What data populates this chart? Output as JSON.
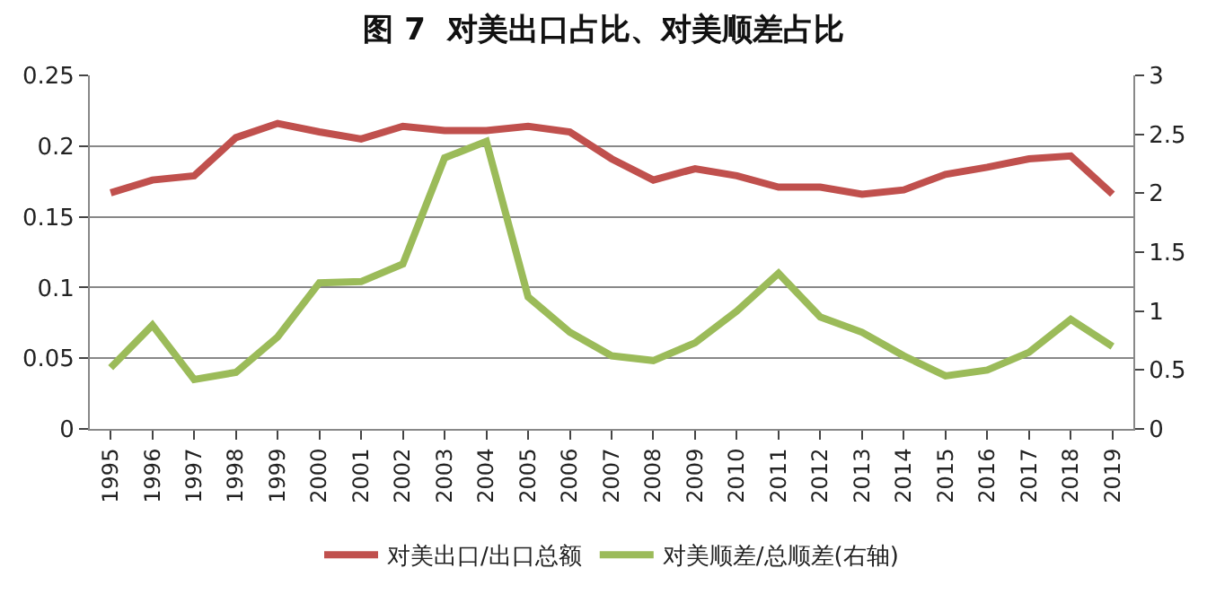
{
  "chart_data": {
    "type": "line",
    "title": "图 7  对美出口占比、对美顺差占比",
    "categories": [
      "1995",
      "1996",
      "1997",
      "1998",
      "1999",
      "2000",
      "2001",
      "2002",
      "2003",
      "2004",
      "2005",
      "2006",
      "2007",
      "2008",
      "2009",
      "2010",
      "2011",
      "2012",
      "2013",
      "2014",
      "2015",
      "2016",
      "2017",
      "2018",
      "2019"
    ],
    "series": [
      {
        "name": "对美出口/出口总额",
        "color": "#c0504d",
        "values": [
          0.167,
          0.176,
          0.179,
          0.206,
          0.216,
          0.21,
          0.205,
          0.214,
          0.211,
          0.211,
          0.214,
          0.21,
          0.191,
          0.176,
          0.184,
          0.179,
          0.171,
          0.171,
          0.166,
          0.169,
          0.18,
          0.185,
          0.191,
          0.193,
          0.166
        ]
      },
      {
        "name": "对美顺差/总顺差(右轴)",
        "color": "#9bbb59",
        "axis": "y2",
        "values": [
          0.52,
          0.88,
          0.42,
          0.48,
          0.78,
          1.24,
          1.25,
          1.4,
          2.3,
          2.44,
          1.12,
          0.82,
          0.62,
          0.58,
          0.73,
          1.0,
          1.32,
          0.95,
          0.82,
          0.62,
          0.45,
          0.5,
          0.65,
          0.93,
          0.7
        ]
      }
    ],
    "ylim": [
      0,
      0.25
    ],
    "yticks": [
      0,
      0.05,
      0.1,
      0.15,
      0.2,
      0.25
    ],
    "y2lim": [
      0,
      3
    ],
    "y2ticks": [
      0,
      0.5,
      1,
      1.5,
      2,
      2.5,
      3
    ],
    "grid": "y",
    "legend": "bottom",
    "marker": "none",
    "line_style": "solid"
  }
}
